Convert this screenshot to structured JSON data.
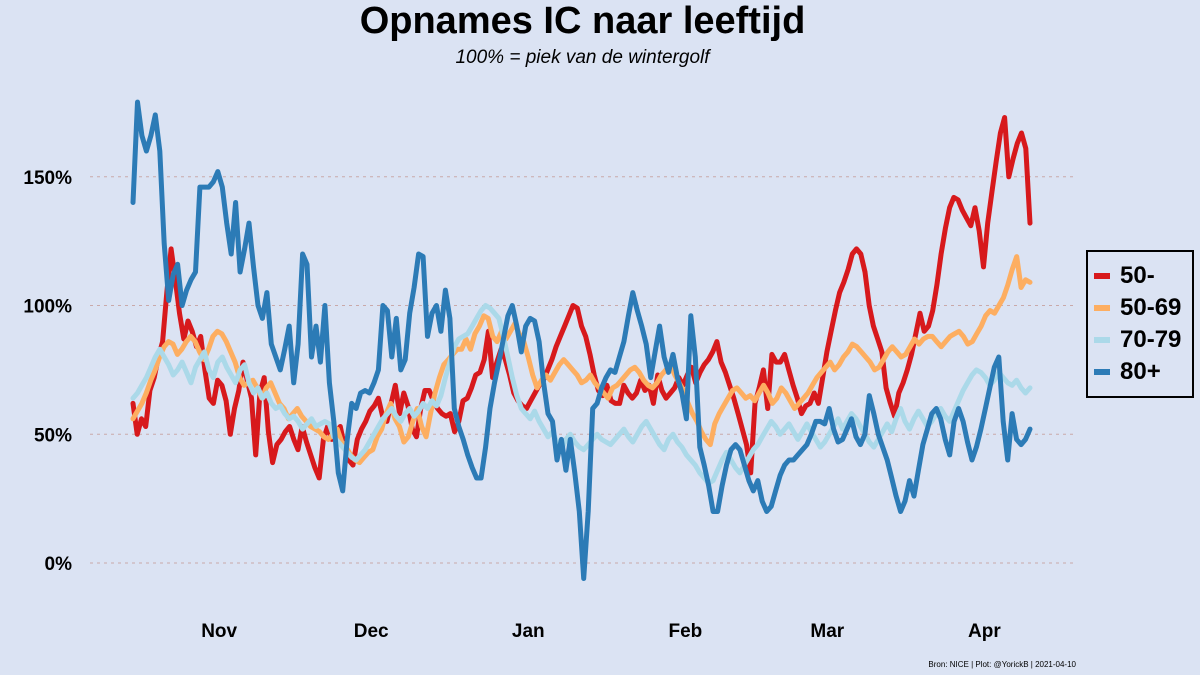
{
  "title": "Opnames IC naar leeftijd",
  "subtitle": "100% = piek van de wintergolf",
  "caption": "Bron: NICE | Plot: @YorickB  |  2021-04-10",
  "chart_data": {
    "type": "line",
    "title": "Opnames IC naar leeftijd",
    "subtitle": "100% = piek van de wintergolf",
    "xlabel": "",
    "ylabel": "",
    "x_range": [
      "2020-10-15",
      "2021-04-10"
    ],
    "ylim": [
      -0.1,
      1.85
    ],
    "y_ticks": [
      0,
      0.5,
      1,
      1.5
    ],
    "y_tick_labels": [
      "0%",
      "50%",
      "100%",
      "150%"
    ],
    "x_ticks": [
      "2020-11-01",
      "2020-12-01",
      "2021-01-01",
      "2021-02-01",
      "2021-03-01",
      "2021-04-01"
    ],
    "x_tick_labels": [
      "Nov",
      "Dec",
      "Jan",
      "Feb",
      "Mar",
      "Apr"
    ],
    "grid": "horizontal dashed",
    "legend_position": "right",
    "series": [
      {
        "name": "50-",
        "color": "#d7191c",
        "values": [
          0.62,
          0.5,
          0.56,
          0.53,
          0.67,
          0.72,
          0.8,
          0.86,
          1.05,
          1.22,
          1.1,
          0.97,
          0.87,
          0.94,
          0.9,
          0.84,
          0.88,
          0.75,
          0.64,
          0.62,
          0.71,
          0.69,
          0.63,
          0.5,
          0.6,
          0.67,
          0.78,
          0.71,
          0.64,
          0.42,
          0.66,
          0.72,
          0.51,
          0.39,
          0.46,
          0.48,
          0.51,
          0.53,
          0.48,
          0.44,
          0.53,
          0.47,
          0.42,
          0.37,
          0.33,
          0.48,
          0.53,
          0.48,
          0.51,
          0.53,
          0.45,
          0.4,
          0.38,
          0.48,
          0.52,
          0.55,
          0.59,
          0.61,
          0.64,
          0.57,
          0.55,
          0.62,
          0.69,
          0.58,
          0.66,
          0.61,
          0.52,
          0.49,
          0.6,
          0.67,
          0.67,
          0.63,
          0.6,
          0.58,
          0.57,
          0.58,
          0.51,
          0.55,
          0.63,
          0.64,
          0.68,
          0.73,
          0.74,
          0.79,
          0.9,
          0.72,
          0.78,
          0.83,
          0.79,
          0.73,
          0.66,
          0.63,
          0.61,
          0.6,
          0.63,
          0.66,
          0.69,
          0.71,
          0.75,
          0.79,
          0.84,
          0.88,
          0.92,
          0.96,
          1.0,
          0.99,
          0.92,
          0.88,
          0.81,
          0.73,
          0.67,
          0.65,
          0.69,
          0.63,
          0.62,
          0.62,
          0.69,
          0.66,
          0.64,
          0.66,
          0.71,
          0.67,
          0.69,
          0.62,
          0.73,
          0.67,
          0.64,
          0.66,
          0.68,
          0.72,
          0.69,
          0.73,
          0.76,
          0.7,
          0.74,
          0.77,
          0.79,
          0.82,
          0.86,
          0.78,
          0.74,
          0.69,
          0.64,
          0.58,
          0.52,
          0.46,
          0.35,
          0.62,
          0.68,
          0.75,
          0.6,
          0.81,
          0.78,
          0.78,
          0.81,
          0.75,
          0.69,
          0.64,
          0.58,
          0.61,
          0.62,
          0.66,
          0.62,
          0.72,
          0.82,
          0.9,
          0.98,
          1.05,
          1.09,
          1.14,
          1.2,
          1.22,
          1.2,
          1.13,
          1.0,
          0.92,
          0.87,
          0.82,
          0.68,
          0.62,
          0.57,
          0.66,
          0.7,
          0.75,
          0.81,
          0.89,
          0.97,
          0.9,
          0.92,
          0.98,
          1.08,
          1.2,
          1.3,
          1.38,
          1.42,
          1.41,
          1.37,
          1.34,
          1.31,
          1.38,
          1.29,
          1.15,
          1.32,
          1.44,
          1.56,
          1.67,
          1.73,
          1.5,
          1.57,
          1.63,
          1.67,
          1.61,
          1.32
        ]
      },
      {
        "name": "50-69",
        "color": "#fdae61",
        "values": [
          0.56,
          0.59,
          0.62,
          0.66,
          0.71,
          0.75,
          0.8,
          0.84,
          0.86,
          0.85,
          0.81,
          0.83,
          0.86,
          0.88,
          0.86,
          0.82,
          0.79,
          0.83,
          0.88,
          0.9,
          0.89,
          0.86,
          0.82,
          0.78,
          0.72,
          0.69,
          0.7,
          0.71,
          0.68,
          0.64,
          0.68,
          0.7,
          0.66,
          0.62,
          0.6,
          0.56,
          0.58,
          0.6,
          0.57,
          0.55,
          0.53,
          0.52,
          0.51,
          0.49,
          0.48,
          0.5,
          0.52,
          0.47,
          0.45,
          0.42,
          0.4,
          0.39,
          0.41,
          0.43,
          0.44,
          0.49,
          0.52,
          0.58,
          0.62,
          0.56,
          0.53,
          0.47,
          0.49,
          0.55,
          0.6,
          0.53,
          0.49,
          0.58,
          0.66,
          0.72,
          0.77,
          0.79,
          0.81,
          0.83,
          0.83,
          0.87,
          0.83,
          0.89,
          0.92,
          0.96,
          0.95,
          0.88,
          0.86,
          0.9,
          0.87,
          0.9,
          0.93,
          0.89,
          0.86,
          0.8,
          0.73,
          0.68,
          0.71,
          0.73,
          0.71,
          0.74,
          0.77,
          0.79,
          0.77,
          0.75,
          0.73,
          0.7,
          0.71,
          0.73,
          0.7,
          0.68,
          0.66,
          0.64,
          0.68,
          0.69,
          0.71,
          0.73,
          0.75,
          0.76,
          0.74,
          0.71,
          0.69,
          0.68,
          0.7,
          0.73,
          0.75,
          0.77,
          0.73,
          0.7,
          0.67,
          0.62,
          0.58,
          0.55,
          0.51,
          0.48,
          0.46,
          0.54,
          0.58,
          0.61,
          0.64,
          0.67,
          0.68,
          0.66,
          0.64,
          0.65,
          0.63,
          0.66,
          0.69,
          0.66,
          0.62,
          0.64,
          0.68,
          0.66,
          0.63,
          0.6,
          0.62,
          0.64,
          0.66,
          0.69,
          0.72,
          0.74,
          0.76,
          0.78,
          0.75,
          0.77,
          0.8,
          0.82,
          0.85,
          0.84,
          0.82,
          0.8,
          0.78,
          0.75,
          0.76,
          0.79,
          0.82,
          0.84,
          0.82,
          0.8,
          0.81,
          0.84,
          0.87,
          0.85,
          0.87,
          0.88,
          0.88,
          0.86,
          0.84,
          0.86,
          0.88,
          0.89,
          0.9,
          0.88,
          0.85,
          0.86,
          0.89,
          0.92,
          0.96,
          0.98,
          0.97,
          1.0,
          1.03,
          1.08,
          1.14,
          1.19,
          1.07,
          1.1,
          1.09
        ]
      },
      {
        "name": "70-79",
        "color": "#abd9e9",
        "values": [
          0.64,
          0.66,
          0.69,
          0.72,
          0.76,
          0.8,
          0.83,
          0.8,
          0.77,
          0.73,
          0.75,
          0.78,
          0.74,
          0.7,
          0.76,
          0.79,
          0.82,
          0.75,
          0.72,
          0.78,
          0.8,
          0.76,
          0.73,
          0.7,
          0.75,
          0.77,
          0.7,
          0.66,
          0.68,
          0.64,
          0.66,
          0.62,
          0.6,
          0.61,
          0.58,
          0.56,
          0.57,
          0.55,
          0.52,
          0.54,
          0.56,
          0.53,
          0.54,
          0.55,
          0.54,
          0.49,
          0.47,
          0.45,
          0.43,
          0.41,
          0.4,
          0.42,
          0.44,
          0.47,
          0.5,
          0.53,
          0.56,
          0.58,
          0.6,
          0.57,
          0.55,
          0.58,
          0.6,
          0.57,
          0.59,
          0.62,
          0.6,
          0.63,
          0.61,
          0.65,
          0.72,
          0.78,
          0.84,
          0.87,
          0.88,
          0.89,
          0.92,
          0.95,
          0.98,
          1.0,
          0.99,
          0.97,
          0.95,
          0.88,
          0.8,
          0.72,
          0.65,
          0.6,
          0.58,
          0.56,
          0.59,
          0.55,
          0.52,
          0.49,
          0.51,
          0.47,
          0.44,
          0.48,
          0.5,
          0.47,
          0.45,
          0.44,
          0.46,
          0.48,
          0.5,
          0.48,
          0.47,
          0.46,
          0.48,
          0.5,
          0.52,
          0.49,
          0.47,
          0.5,
          0.53,
          0.55,
          0.52,
          0.49,
          0.46,
          0.44,
          0.48,
          0.5,
          0.47,
          0.45,
          0.42,
          0.4,
          0.38,
          0.35,
          0.33,
          0.31,
          0.32,
          0.36,
          0.4,
          0.43,
          0.4,
          0.37,
          0.35,
          0.38,
          0.41,
          0.44,
          0.46,
          0.49,
          0.52,
          0.55,
          0.53,
          0.5,
          0.52,
          0.54,
          0.51,
          0.48,
          0.51,
          0.54,
          0.51,
          0.48,
          0.45,
          0.47,
          0.5,
          0.53,
          0.56,
          0.52,
          0.55,
          0.58,
          0.56,
          0.53,
          0.5,
          0.47,
          0.45,
          0.48,
          0.51,
          0.54,
          0.51,
          0.56,
          0.6,
          0.55,
          0.52,
          0.56,
          0.59,
          0.56,
          0.53,
          0.55,
          0.58,
          0.6,
          0.57,
          0.55,
          0.59,
          0.63,
          0.67,
          0.7,
          0.73,
          0.75,
          0.74,
          0.72,
          0.69,
          0.71,
          0.74,
          0.72,
          0.7,
          0.69,
          0.71,
          0.68,
          0.66,
          0.68
        ]
      },
      {
        "name": "80+",
        "color": "#2c7bb6",
        "values": [
          1.4,
          1.79,
          1.66,
          1.6,
          1.66,
          1.74,
          1.6,
          1.24,
          1.02,
          1.12,
          1.16,
          1.0,
          1.06,
          1.1,
          1.13,
          1.46,
          1.46,
          1.46,
          1.48,
          1.52,
          1.46,
          1.32,
          1.2,
          1.4,
          1.13,
          1.22,
          1.32,
          1.15,
          1.0,
          0.95,
          1.05,
          0.85,
          0.8,
          0.75,
          0.83,
          0.92,
          0.7,
          0.85,
          1.2,
          1.16,
          0.8,
          0.92,
          0.78,
          1.0,
          0.7,
          0.55,
          0.35,
          0.28,
          0.48,
          0.62,
          0.6,
          0.66,
          0.67,
          0.66,
          0.7,
          0.75,
          1.0,
          0.98,
          0.8,
          0.95,
          0.75,
          0.79,
          0.97,
          1.07,
          1.2,
          1.19,
          0.88,
          0.97,
          1.0,
          0.9,
          1.06,
          0.95,
          0.6,
          0.53,
          0.48,
          0.42,
          0.37,
          0.33,
          0.33,
          0.45,
          0.6,
          0.7,
          0.78,
          0.87,
          0.96,
          1.0,
          0.92,
          0.82,
          0.92,
          0.95,
          0.94,
          0.86,
          0.7,
          0.58,
          0.55,
          0.4,
          0.48,
          0.36,
          0.48,
          0.35,
          0.2,
          -0.06,
          0.2,
          0.6,
          0.62,
          0.68,
          0.72,
          0.75,
          0.74,
          0.8,
          0.86,
          0.96,
          1.05,
          0.98,
          0.92,
          0.85,
          0.72,
          0.82,
          0.92,
          0.8,
          0.74,
          0.81,
          0.72,
          0.66,
          0.56,
          0.96,
          0.8,
          0.45,
          0.38,
          0.3,
          0.2,
          0.2,
          0.3,
          0.38,
          0.44,
          0.46,
          0.44,
          0.38,
          0.32,
          0.28,
          0.32,
          0.24,
          0.2,
          0.22,
          0.28,
          0.34,
          0.38,
          0.4,
          0.4,
          0.42,
          0.44,
          0.46,
          0.5,
          0.55,
          0.55,
          0.54,
          0.6,
          0.52,
          0.47,
          0.48,
          0.52,
          0.56,
          0.49,
          0.46,
          0.5,
          0.65,
          0.58,
          0.5,
          0.45,
          0.4,
          0.33,
          0.26,
          0.2,
          0.24,
          0.32,
          0.26,
          0.36,
          0.46,
          0.52,
          0.58,
          0.6,
          0.56,
          0.48,
          0.42,
          0.55,
          0.6,
          0.55,
          0.47,
          0.4,
          0.45,
          0.52,
          0.6,
          0.68,
          0.76,
          0.8,
          0.55,
          0.4,
          0.58,
          0.48,
          0.46,
          0.48,
          0.52
        ]
      }
    ]
  }
}
